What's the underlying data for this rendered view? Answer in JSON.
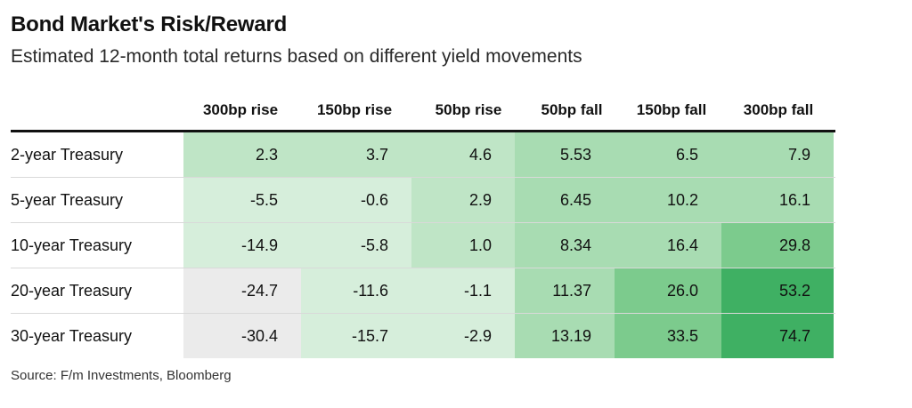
{
  "header": {
    "title": "Bond Market's Risk/Reward",
    "subtitle": "Estimated 12-month total returns based on different yield movements"
  },
  "source": "Source: F/m Investments, Bloomberg",
  "colors": {
    "very_low": "#ebebeb",
    "negative": "#d6eedb",
    "low": "#bfe5c6",
    "mid": "#a8dcb2",
    "high": "#7ccb8d",
    "very_high": "#3fb063"
  },
  "chart_data": {
    "type": "table",
    "columns": [
      "300bp rise",
      "150bp rise",
      "50bp rise",
      "50bp fall",
      "150bp fall",
      "300bp fall"
    ],
    "rows": [
      {
        "label": "2-year Treasury",
        "values": [
          2.3,
          3.7,
          4.6,
          5.53,
          6.5,
          7.9
        ],
        "display": [
          "2.3",
          "3.7",
          "4.6",
          "5.53",
          "6.5",
          "7.9"
        ]
      },
      {
        "label": "5-year Treasury",
        "values": [
          -5.5,
          -0.6,
          2.9,
          6.45,
          10.2,
          16.1
        ],
        "display": [
          "-5.5",
          "-0.6",
          "2.9",
          "6.45",
          "10.2",
          "16.1"
        ]
      },
      {
        "label": "10-year Treasury",
        "values": [
          -14.9,
          -5.8,
          1.0,
          8.34,
          16.4,
          29.8
        ],
        "display": [
          "-14.9",
          "-5.8",
          "1.0",
          "8.34",
          "16.4",
          "29.8"
        ]
      },
      {
        "label": "20-year Treasury",
        "values": [
          -24.7,
          -11.6,
          -1.1,
          11.37,
          26.0,
          53.2
        ],
        "display": [
          "-24.7",
          "-11.6",
          "-1.1",
          "11.37",
          "26.0",
          "53.2"
        ]
      },
      {
        "label": "30-year Treasury",
        "values": [
          -30.4,
          -15.7,
          -2.9,
          13.19,
          33.5,
          74.7
        ],
        "display": [
          "-30.4",
          "-15.7",
          "-2.9",
          "13.19",
          "33.5",
          "74.7"
        ]
      }
    ]
  }
}
